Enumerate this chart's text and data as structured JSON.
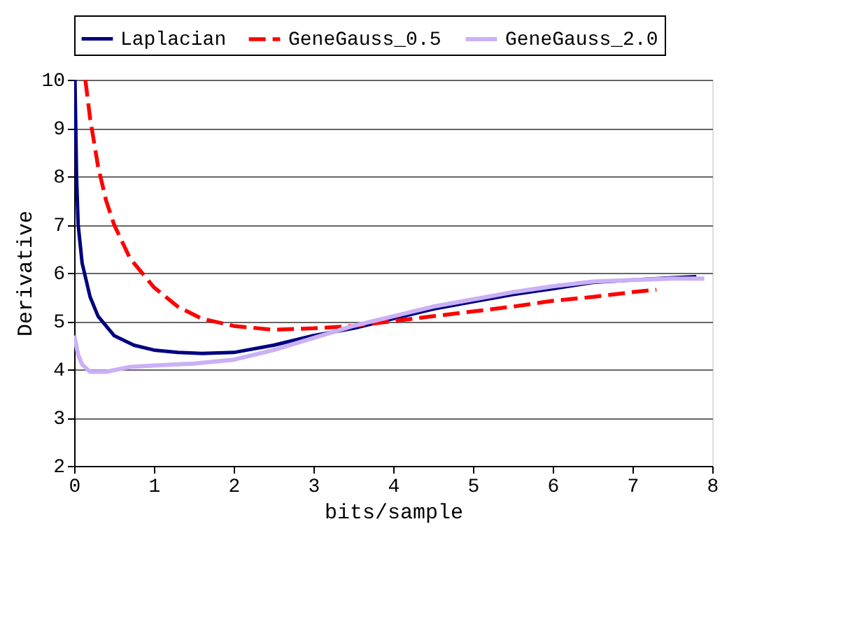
{
  "chart_data": {
    "type": "line",
    "xlabel": "bits/sample",
    "ylabel": "Derivative",
    "xlim": [
      0,
      8
    ],
    "ylim": [
      2,
      10
    ],
    "xticks": [
      0,
      1,
      2,
      3,
      4,
      5,
      6,
      7,
      8
    ],
    "yticks": [
      2,
      3,
      4,
      5,
      6,
      7,
      8,
      9,
      10
    ],
    "grid": "y",
    "legend": "top",
    "marker": "none",
    "series": [
      {
        "name": "Laplacian",
        "color": "#000080",
        "line_style": "solid",
        "x": [
          0.01,
          0.03,
          0.05,
          0.1,
          0.2,
          0.3,
          0.5,
          0.75,
          1,
          1.3,
          1.6,
          2,
          2.5,
          3,
          3.5,
          4,
          4.5,
          5,
          5.5,
          6,
          6.5,
          7,
          7.5,
          7.8
        ],
        "values": [
          10,
          8,
          7,
          6.2,
          5.5,
          5.1,
          4.7,
          4.5,
          4.4,
          4.35,
          4.33,
          4.35,
          4.5,
          4.7,
          4.85,
          5.05,
          5.25,
          5.4,
          5.55,
          5.67,
          5.8,
          5.85,
          5.9,
          5.92
        ]
      },
      {
        "name": "GeneGauss_0.5",
        "color": "#ff0000",
        "line_style": "dashed",
        "x": [
          0.14,
          0.2,
          0.3,
          0.4,
          0.5,
          0.7,
          1,
          1.3,
          1.6,
          2,
          2.5,
          3,
          3.5,
          4,
          4.5,
          5,
          5.5,
          6,
          6.5,
          7,
          7.3
        ],
        "values": [
          10,
          9.2,
          8.2,
          7.5,
          7.0,
          6.3,
          5.7,
          5.3,
          5.05,
          4.9,
          4.82,
          4.85,
          4.9,
          5.0,
          5.1,
          5.2,
          5.3,
          5.42,
          5.5,
          5.6,
          5.65
        ]
      },
      {
        "name": "GeneGauss_2.0",
        "color": "#cbb0f5",
        "line_style": "solid",
        "x": [
          0,
          0.05,
          0.1,
          0.2,
          0.4,
          0.7,
          1,
          1.5,
          2,
          2.5,
          3,
          3.5,
          4,
          4.5,
          5,
          5.5,
          6,
          6.5,
          7,
          7.5,
          7.9
        ],
        "values": [
          4.7,
          4.3,
          4.1,
          3.95,
          3.95,
          4.05,
          4.08,
          4.12,
          4.2,
          4.4,
          4.65,
          4.9,
          5.1,
          5.3,
          5.45,
          5.6,
          5.72,
          5.82,
          5.85,
          5.88,
          5.88
        ]
      }
    ]
  }
}
